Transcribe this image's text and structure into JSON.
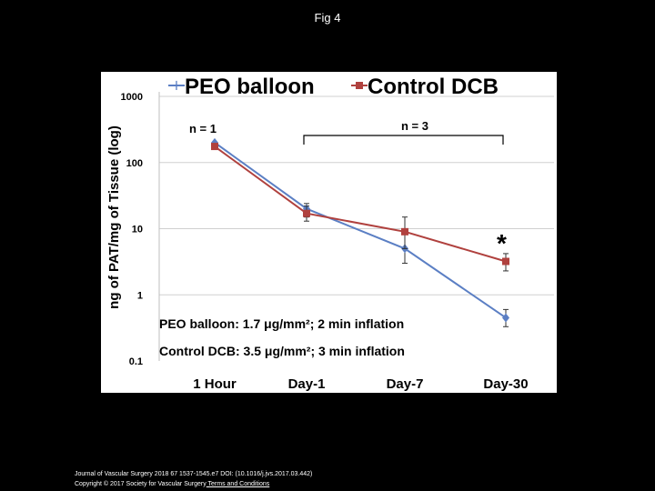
{
  "slide": {
    "title": "Fig 4",
    "footer_line1": "Journal of Vascular Surgery 2018 67 1537-1545.e7 DOI: (10.1016/j.jvs.2017.03.442)",
    "footer_line2_prefix": "Copyright © 2017 Society for Vascular Surgery",
    "footer_line2_link": " Terms and Conditions"
  },
  "chart_data": {
    "type": "line",
    "yscale": "log",
    "ylabel": "ng of PAT/mg of Tissue (log)",
    "xlabel": "",
    "categories": [
      "1 Hour",
      "Day-1",
      "Day-7",
      "Day-30"
    ],
    "y_ticks": [
      0.1,
      1,
      10,
      100,
      1000
    ],
    "y_tick_labels": [
      "0.1",
      "1",
      "10",
      "100",
      "1000"
    ],
    "ylim": [
      0.1,
      1000
    ],
    "grid": true,
    "legend_position": "top",
    "series": [
      {
        "name": "PEO balloon",
        "color": "#5B7FC4",
        "marker": "diamond",
        "values": [
          200,
          20,
          5,
          0.45
        ],
        "err_high": [
          null,
          24,
          9,
          0.6
        ],
        "err_low": [
          null,
          15,
          3,
          0.33
        ]
      },
      {
        "name": "Control DCB",
        "color": "#B0413E",
        "marker": "square",
        "values": [
          175,
          17,
          9,
          3.2
        ],
        "err_high": [
          null,
          22,
          15,
          4.2
        ],
        "err_low": [
          null,
          13,
          5,
          2.3
        ]
      }
    ],
    "annotations": {
      "n1": "n = 1",
      "n3": "n = 3",
      "significance": "*",
      "note1": "PEO balloon: 1.7 μg/mm²; 2 min inflation",
      "note2": "Control DCB: 3.5 μg/mm²; 3 min inflation"
    }
  }
}
